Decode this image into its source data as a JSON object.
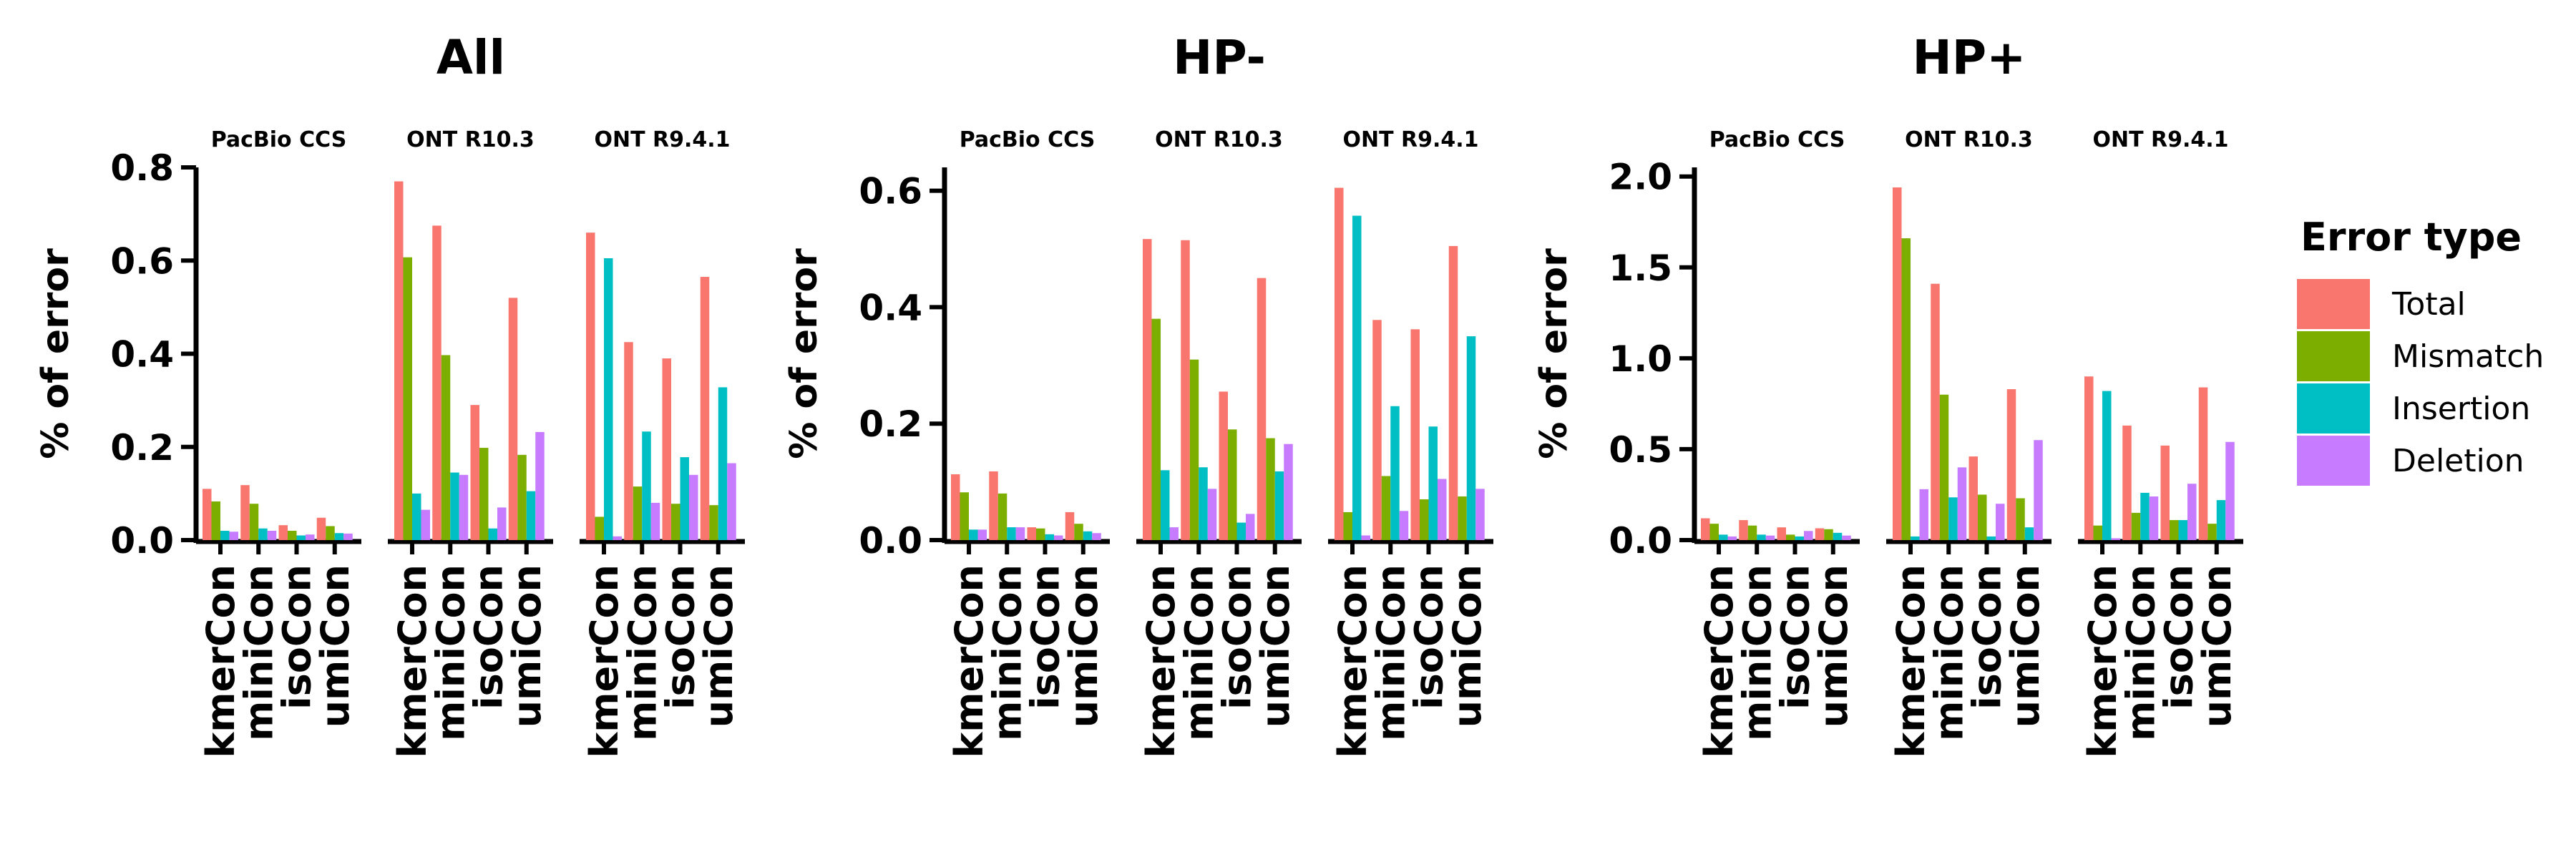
{
  "chart_data": {
    "type": "bar",
    "categories": [
      "kmerCon",
      "miniCon",
      "isoCon",
      "umiCon"
    ],
    "facets": [
      "PacBio CCS",
      "ONT R10.3",
      "ONT R9.4.1"
    ],
    "ylabel": "% of error",
    "legend": {
      "title": "Error type",
      "position": "right",
      "entries": [
        "Total",
        "Mismatch",
        "Insertion",
        "Deletion"
      ]
    },
    "colors": {
      "Total": "#F8766D",
      "Mismatch": "#7CAE00",
      "Insertion": "#00BFC4",
      "Deletion": "#C77CFF"
    },
    "panels": [
      {
        "title": "All",
        "ylim": [
          0,
          0.8
        ],
        "yticks": [
          0,
          0.2,
          0.4,
          0.6,
          0.8
        ],
        "ytick_labels": [
          "0.0",
          "0.2",
          "0.4",
          "0.6",
          "0.8"
        ],
        "facets": [
          {
            "name": "PacBio CCS",
            "series": {
              "Total": [
                0.11,
                0.118,
                0.032,
                0.048
              ],
              "Mismatch": [
                0.083,
                0.078,
                0.02,
                0.03
              ],
              "Insertion": [
                0.02,
                0.025,
                0.01,
                0.015
              ],
              "Deletion": [
                0.018,
                0.02,
                0.012,
                0.014
              ]
            }
          },
          {
            "name": "ONT R10.3",
            "series": {
              "Total": [
                0.77,
                0.675,
                0.29,
                0.52
              ],
              "Mismatch": [
                0.607,
                0.397,
                0.198,
                0.183
              ],
              "Insertion": [
                0.1,
                0.145,
                0.025,
                0.105
              ],
              "Deletion": [
                0.065,
                0.14,
                0.07,
                0.232
              ]
            }
          },
          {
            "name": "ONT R9.4.1",
            "series": {
              "Total": [
                0.66,
                0.425,
                0.39,
                0.565
              ],
              "Mismatch": [
                0.05,
                0.115,
                0.078,
                0.075
              ],
              "Insertion": [
                0.605,
                0.233,
                0.178,
                0.328
              ],
              "Deletion": [
                0.008,
                0.08,
                0.14,
                0.165
              ]
            }
          }
        ]
      },
      {
        "title": "HP-",
        "ylim": [
          0,
          0.64
        ],
        "yticks": [
          0,
          0.2,
          0.4,
          0.6
        ],
        "ytick_labels": [
          "0.0",
          "0.2",
          "0.4",
          "0.6"
        ],
        "facets": [
          {
            "name": "PacBio CCS",
            "series": {
              "Total": [
                0.113,
                0.118,
                0.022,
                0.048
              ],
              "Mismatch": [
                0.082,
                0.08,
                0.02,
                0.028
              ],
              "Insertion": [
                0.018,
                0.022,
                0.01,
                0.015
              ],
              "Deletion": [
                0.018,
                0.022,
                0.008,
                0.012
              ]
            }
          },
          {
            "name": "ONT R10.3",
            "series": {
              "Total": [
                0.517,
                0.515,
                0.255,
                0.45
              ],
              "Mismatch": [
                0.38,
                0.31,
                0.19,
                0.175
              ],
              "Insertion": [
                0.12,
                0.125,
                0.03,
                0.118
              ],
              "Deletion": [
                0.022,
                0.088,
                0.045,
                0.165
              ]
            }
          },
          {
            "name": "ONT R9.4.1",
            "series": {
              "Total": [
                0.605,
                0.378,
                0.362,
                0.505
              ],
              "Mismatch": [
                0.048,
                0.11,
                0.07,
                0.075
              ],
              "Insertion": [
                0.557,
                0.23,
                0.195,
                0.35
              ],
              "Deletion": [
                0.008,
                0.05,
                0.105,
                0.088
              ]
            }
          }
        ]
      },
      {
        "title": "HP+",
        "ylim": [
          0,
          2.05
        ],
        "yticks": [
          0,
          0.5,
          1.0,
          1.5,
          2.0
        ],
        "ytick_labels": [
          "0.0",
          "0.5",
          "1.0",
          "1.5",
          "2.0"
        ],
        "facets": [
          {
            "name": "PacBio CCS",
            "series": {
              "Total": [
                0.12,
                0.11,
                0.07,
                0.065
              ],
              "Mismatch": [
                0.09,
                0.08,
                0.03,
                0.06
              ],
              "Insertion": [
                0.03,
                0.03,
                0.02,
                0.04
              ],
              "Deletion": [
                0.02,
                0.025,
                0.05,
                0.025
              ]
            }
          },
          {
            "name": "ONT R10.3",
            "series": {
              "Total": [
                1.94,
                1.41,
                0.46,
                0.83
              ],
              "Mismatch": [
                1.66,
                0.8,
                0.25,
                0.23
              ],
              "Insertion": [
                0.02,
                0.235,
                0.02,
                0.07
              ],
              "Deletion": [
                0.28,
                0.4,
                0.2,
                0.55
              ]
            }
          },
          {
            "name": "ONT R9.4.1",
            "series": {
              "Total": [
                0.9,
                0.63,
                0.52,
                0.84
              ],
              "Mismatch": [
                0.08,
                0.15,
                0.11,
                0.09
              ],
              "Insertion": [
                0.82,
                0.26,
                0.11,
                0.22
              ],
              "Deletion": [
                0.01,
                0.24,
                0.31,
                0.54
              ]
            }
          }
        ]
      }
    ]
  }
}
